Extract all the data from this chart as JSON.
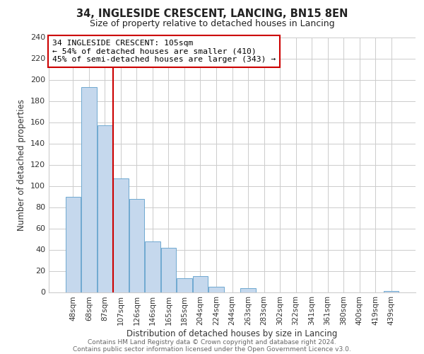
{
  "title": "34, INGLESIDE CRESCENT, LANCING, BN15 8EN",
  "subtitle": "Size of property relative to detached houses in Lancing",
  "xlabel": "Distribution of detached houses by size in Lancing",
  "ylabel": "Number of detached properties",
  "bar_labels": [
    "48sqm",
    "68sqm",
    "87sqm",
    "107sqm",
    "126sqm",
    "146sqm",
    "165sqm",
    "185sqm",
    "204sqm",
    "224sqm",
    "244sqm",
    "263sqm",
    "283sqm",
    "302sqm",
    "322sqm",
    "341sqm",
    "361sqm",
    "380sqm",
    "400sqm",
    "419sqm",
    "439sqm"
  ],
  "bar_heights": [
    90,
    193,
    157,
    107,
    88,
    48,
    42,
    13,
    15,
    5,
    0,
    4,
    0,
    0,
    0,
    0,
    0,
    0,
    0,
    0,
    1
  ],
  "bar_color": "#c5d8ed",
  "bar_edge_color": "#6fa8d0",
  "vline_color": "#cc0000",
  "annotation_title": "34 INGLESIDE CRESCENT: 105sqm",
  "annotation_line1": "← 54% of detached houses are smaller (410)",
  "annotation_line2": "45% of semi-detached houses are larger (343) →",
  "annotation_box_color": "#ffffff",
  "annotation_box_edge": "#cc0000",
  "ylim": [
    0,
    240
  ],
  "yticks": [
    0,
    20,
    40,
    60,
    80,
    100,
    120,
    140,
    160,
    180,
    200,
    220,
    240
  ],
  "footer1": "Contains HM Land Registry data © Crown copyright and database right 2024.",
  "footer2": "Contains public sector information licensed under the Open Government Licence v3.0.",
  "bg_color": "#ffffff",
  "grid_color": "#cccccc"
}
